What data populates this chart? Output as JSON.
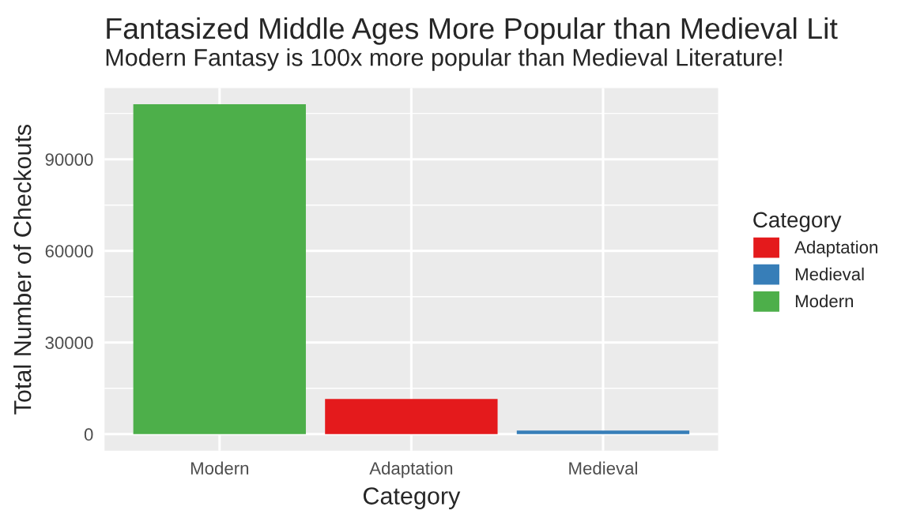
{
  "chart_data": {
    "type": "bar",
    "title": "Fantasized Middle Ages More Popular than Medieval Lit",
    "subtitle": "Modern Fantasy is 100x more popular than Medieval Literature!",
    "xlabel": "Category",
    "ylabel": "Total Number of Checkouts",
    "legend_title": "Category",
    "categories": [
      "Modern",
      "Adaptation",
      "Medieval"
    ],
    "series": [
      {
        "name": "Adaptation",
        "color": "#e41a1c",
        "values": [
          null,
          11500,
          null
        ]
      },
      {
        "name": "Medieval",
        "color": "#377eb8",
        "values": [
          null,
          null,
          1200
        ]
      },
      {
        "name": "Modern",
        "color": "#4daf4a",
        "values": [
          108000,
          null,
          null
        ]
      }
    ],
    "ylim": [
      -5400,
      113300
    ],
    "yticks": [
      0,
      30000,
      60000,
      90000
    ],
    "grid": true,
    "legend": "right"
  }
}
